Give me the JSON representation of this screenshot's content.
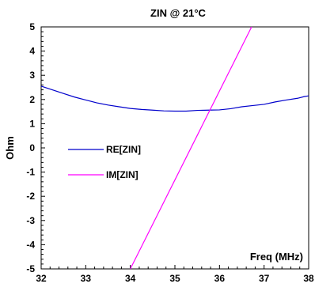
{
  "chart_data": {
    "type": "line",
    "title": "ZIN @ 21°C",
    "xlabel": "Freq (MHz)",
    "ylabel": "Ohm",
    "xlim": [
      32,
      38
    ],
    "ylim": [
      -5,
      5
    ],
    "x_ticks": [
      "32",
      "33",
      "34",
      "35",
      "36",
      "37",
      "38"
    ],
    "y_ticks": [
      "5",
      "4",
      "3",
      "2",
      "1",
      "0",
      "-1",
      "-2",
      "-3",
      "-4",
      "-5"
    ],
    "grid": false,
    "legend_position": "left-middle",
    "series": [
      {
        "name": "RE[ZIN]",
        "color": "#0000cc",
        "x": [
          32,
          32.25,
          32.5,
          32.75,
          33,
          33.25,
          33.5,
          33.75,
          34,
          34.25,
          34.5,
          34.75,
          35,
          35.25,
          35.5,
          35.75,
          36,
          36.25,
          36.5,
          36.75,
          37,
          37.25,
          37.5,
          37.75,
          37.9,
          38
        ],
        "y": [
          2.55,
          2.4,
          2.25,
          2.1,
          1.98,
          1.86,
          1.77,
          1.7,
          1.63,
          1.59,
          1.56,
          1.53,
          1.52,
          1.52,
          1.55,
          1.56,
          1.57,
          1.62,
          1.7,
          1.75,
          1.8,
          1.9,
          1.98,
          2.05,
          2.12,
          2.15
        ]
      },
      {
        "name": "IM[ZIN]",
        "color": "#ff00ff",
        "x": [
          34,
          36.72
        ],
        "y": [
          -5,
          5
        ]
      }
    ]
  }
}
